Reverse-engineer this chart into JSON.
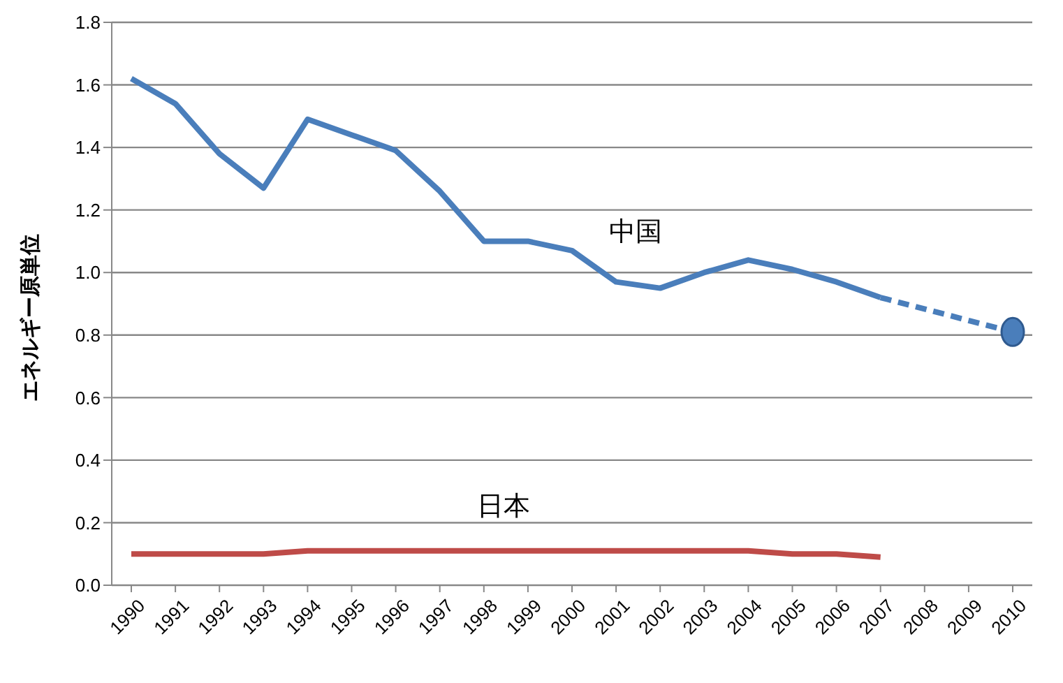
{
  "chart_data": {
    "type": "line",
    "ylabel": "エネルギー原単位",
    "categories": [
      "1990",
      "1991",
      "1992",
      "1993",
      "1994",
      "1995",
      "1996",
      "1997",
      "1998",
      "1999",
      "2000",
      "2001",
      "2002",
      "2003",
      "2004",
      "2005",
      "2006",
      "2007",
      "2008",
      "2009",
      "2010"
    ],
    "ylim": [
      0,
      1.8
    ],
    "yticks": [
      {
        "value": 0,
        "label": "0.0"
      },
      {
        "value": 0.2,
        "label": "0.2"
      },
      {
        "value": 0.4,
        "label": "0.4"
      },
      {
        "value": 0.6,
        "label": "0.6"
      },
      {
        "value": 0.8,
        "label": "0.8"
      },
      {
        "value": 1.0,
        "label": "1.0"
      },
      {
        "value": 1.2,
        "label": "1.2"
      },
      {
        "value": 1.4,
        "label": "1.4"
      },
      {
        "value": 1.6,
        "label": "1.6"
      },
      {
        "value": 1.8,
        "label": "1.8"
      }
    ],
    "grid": "y",
    "legend": false,
    "marker": "none",
    "line_style": "solid",
    "series": [
      {
        "name": "中国",
        "color": "#4a7ebb",
        "values": [
          1.62,
          1.54,
          1.38,
          1.27,
          1.49,
          1.44,
          1.39,
          1.26,
          1.1,
          1.1,
          1.07,
          0.97,
          0.95,
          1.0,
          1.04,
          1.01,
          0.97,
          0.92,
          null,
          null,
          null
        ]
      },
      {
        "color": "#4a7ebb",
        "line_style": "dashed",
        "values": [
          null,
          null,
          null,
          null,
          null,
          null,
          null,
          null,
          null,
          null,
          null,
          null,
          null,
          null,
          null,
          null,
          null,
          0.92,
          null,
          null,
          0.81
        ]
      },
      {
        "type": "scatter",
        "marker": "circle",
        "color": "#4a7ebb",
        "values": [
          null,
          null,
          null,
          null,
          null,
          null,
          null,
          null,
          null,
          null,
          null,
          null,
          null,
          null,
          null,
          null,
          null,
          null,
          null,
          null,
          0.81
        ]
      },
      {
        "name": "日本",
        "color": "#be4b48",
        "values": [
          0.1,
          0.1,
          0.1,
          0.1,
          0.11,
          0.11,
          0.11,
          0.11,
          0.11,
          0.11,
          0.11,
          0.11,
          0.11,
          0.11,
          0.11,
          0.1,
          0.1,
          0.09,
          null,
          null,
          null
        ]
      }
    ]
  }
}
